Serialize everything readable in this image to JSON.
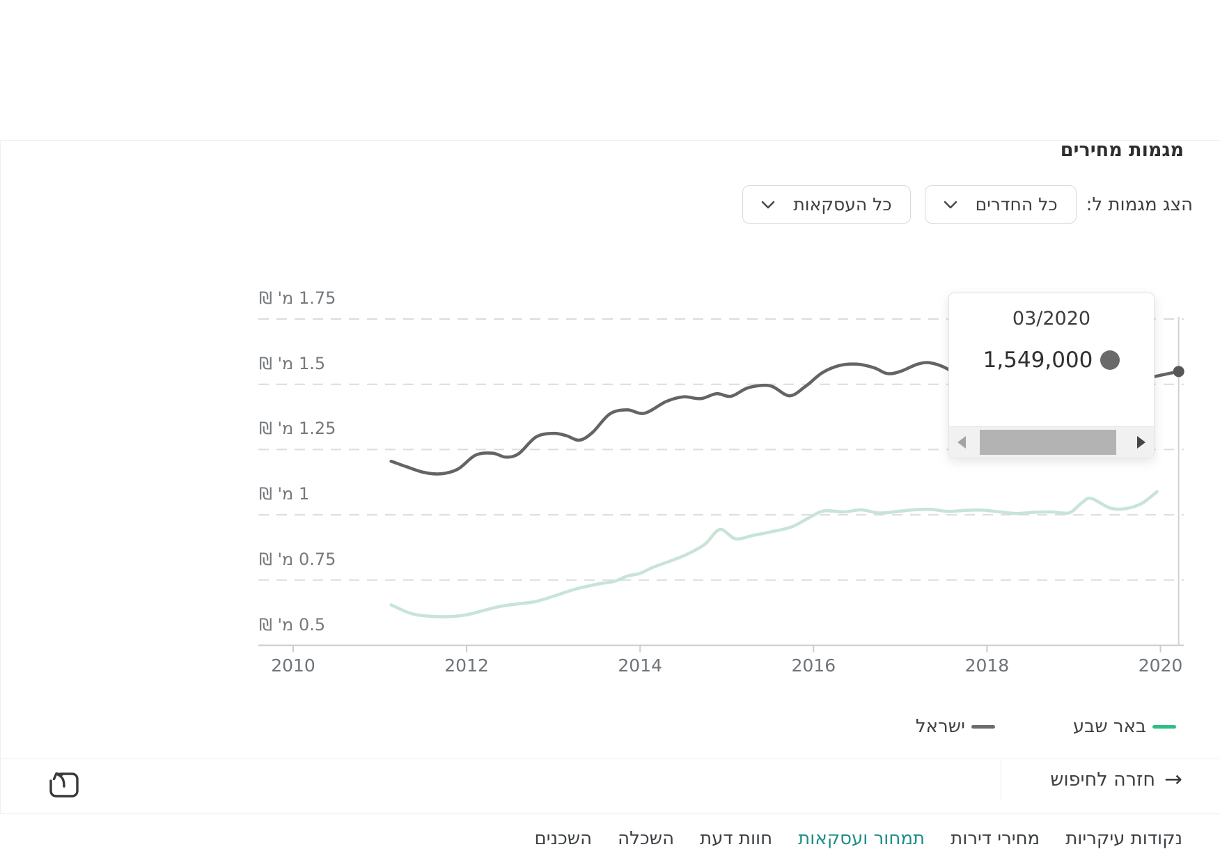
{
  "window": {
    "title": "מגמות מחירים"
  },
  "controls": {
    "label": "הצג מגמות ל:",
    "rooms_filter_value": "כל החדרים",
    "deals_filter_value": "כל העסקאות",
    "dropdown_icon": "chevron-down-icon"
  },
  "chart_data": {
    "type": "line",
    "title": "מגמות מחירים",
    "grid": "dashed-horizontal",
    "x_axis": {
      "ticks": [
        2010,
        2012,
        2014,
        2016,
        2018,
        2020
      ],
      "range": [
        2010,
        2020.5
      ]
    },
    "y_axis": {
      "tick_values": [
        1.75,
        1.5,
        1.25,
        1.0,
        0.75,
        0.5
      ],
      "tick_labels": [
        "1.75 מ' ₪",
        "1.5 מ' ₪",
        "1.25 מ' ₪",
        "1 מ' ₪",
        "0.75 מ' ₪",
        "0.5 מ' ₪"
      ],
      "unit": "מיליוני ₪",
      "range": [
        0.5,
        1.75
      ]
    },
    "series": [
      {
        "name": "ישראל",
        "color": "#646464",
        "width": 4.5,
        "points": [
          [
            2011.13,
            1.205
          ],
          [
            2011.3,
            1.185
          ],
          [
            2011.5,
            1.163
          ],
          [
            2011.7,
            1.157
          ],
          [
            2011.9,
            1.175
          ],
          [
            2012.1,
            1.228
          ],
          [
            2012.3,
            1.236
          ],
          [
            2012.45,
            1.221
          ],
          [
            2012.6,
            1.234
          ],
          [
            2012.8,
            1.298
          ],
          [
            2013.0,
            1.312
          ],
          [
            2013.15,
            1.303
          ],
          [
            2013.3,
            1.286
          ],
          [
            2013.45,
            1.315
          ],
          [
            2013.65,
            1.386
          ],
          [
            2013.85,
            1.402
          ],
          [
            2014.05,
            1.389
          ],
          [
            2014.3,
            1.434
          ],
          [
            2014.5,
            1.452
          ],
          [
            2014.7,
            1.445
          ],
          [
            2014.88,
            1.464
          ],
          [
            2015.05,
            1.454
          ],
          [
            2015.25,
            1.487
          ],
          [
            2015.5,
            1.494
          ],
          [
            2015.72,
            1.456
          ],
          [
            2015.9,
            1.49
          ],
          [
            2016.1,
            1.544
          ],
          [
            2016.3,
            1.572
          ],
          [
            2016.5,
            1.577
          ],
          [
            2016.7,
            1.563
          ],
          [
            2016.85,
            1.541
          ],
          [
            2017.0,
            1.549
          ],
          [
            2017.2,
            1.577
          ],
          [
            2017.35,
            1.582
          ],
          [
            2017.55,
            1.558
          ],
          [
            2017.75,
            1.509
          ],
          [
            2017.95,
            1.479
          ],
          [
            2018.3,
            1.452
          ],
          [
            2018.7,
            1.438
          ],
          [
            2019.0,
            1.458
          ],
          [
            2019.4,
            1.488
          ],
          [
            2019.8,
            1.52
          ],
          [
            2020.21,
            1.549
          ]
        ]
      },
      {
        "name": "באר שבע",
        "color": "#c8e4d7",
        "width": 4.5,
        "points": [
          [
            2011.13,
            0.655
          ],
          [
            2011.35,
            0.623
          ],
          [
            2011.55,
            0.612
          ],
          [
            2011.8,
            0.61
          ],
          [
            2012.0,
            0.617
          ],
          [
            2012.2,
            0.634
          ],
          [
            2012.4,
            0.65
          ],
          [
            2012.6,
            0.659
          ],
          [
            2012.8,
            0.668
          ],
          [
            2013.0,
            0.688
          ],
          [
            2013.25,
            0.715
          ],
          [
            2013.5,
            0.734
          ],
          [
            2013.7,
            0.745
          ],
          [
            2013.85,
            0.765
          ],
          [
            2014.0,
            0.776
          ],
          [
            2014.15,
            0.799
          ],
          [
            2014.35,
            0.823
          ],
          [
            2014.55,
            0.85
          ],
          [
            2014.75,
            0.888
          ],
          [
            2014.92,
            0.944
          ],
          [
            2015.1,
            0.908
          ],
          [
            2015.3,
            0.921
          ],
          [
            2015.5,
            0.934
          ],
          [
            2015.75,
            0.954
          ],
          [
            2015.95,
            0.989
          ],
          [
            2016.12,
            1.015
          ],
          [
            2016.35,
            1.011
          ],
          [
            2016.55,
            1.019
          ],
          [
            2016.75,
            1.007
          ],
          [
            2016.95,
            1.012
          ],
          [
            2017.15,
            1.019
          ],
          [
            2017.35,
            1.021
          ],
          [
            2017.55,
            1.013
          ],
          [
            2017.75,
            1.017
          ],
          [
            2017.95,
            1.018
          ],
          [
            2018.15,
            1.011
          ],
          [
            2018.35,
            1.005
          ],
          [
            2018.55,
            1.01
          ],
          [
            2018.75,
            1.011
          ],
          [
            2018.95,
            1.008
          ],
          [
            2019.1,
            1.048
          ],
          [
            2019.2,
            1.063
          ],
          [
            2019.42,
            1.026
          ],
          [
            2019.6,
            1.024
          ],
          [
            2019.78,
            1.043
          ],
          [
            2019.96,
            1.088
          ]
        ]
      }
    ],
    "highlight": {
      "series": "ישראל",
      "x": 2020.21,
      "value": 1549000,
      "date_label": "03/2020"
    }
  },
  "tooltip": {
    "date": "03/2020",
    "value": "1,549,000",
    "dot_color": "#6a6a6a",
    "scrollbar": {
      "left_icon": "triangle-left-icon",
      "right_icon": "triangle-right-icon"
    }
  },
  "legend": {
    "items": [
      {
        "label": "באר שבע",
        "color": "#2ebd83"
      },
      {
        "label": "ישראל",
        "color": "#6b6b6b"
      }
    ]
  },
  "footer": {
    "back_label": "חזרה לחיפוש",
    "back_arrow": "→",
    "share_icon": "share-icon"
  },
  "nav": {
    "items": [
      "נקודות עיקריות",
      "מחירי דירות",
      "תמחור ועסקאות",
      "חוות דעת",
      "השכלה",
      "השכנים"
    ],
    "active": "תמחור ועסקאות",
    "active_color": "#1e8e89"
  },
  "colors": {
    "grid": "#dcdcdc",
    "axis": "#c9cdd1",
    "crosshair": "#d2d2d2",
    "highlight_dot": "#575757"
  }
}
